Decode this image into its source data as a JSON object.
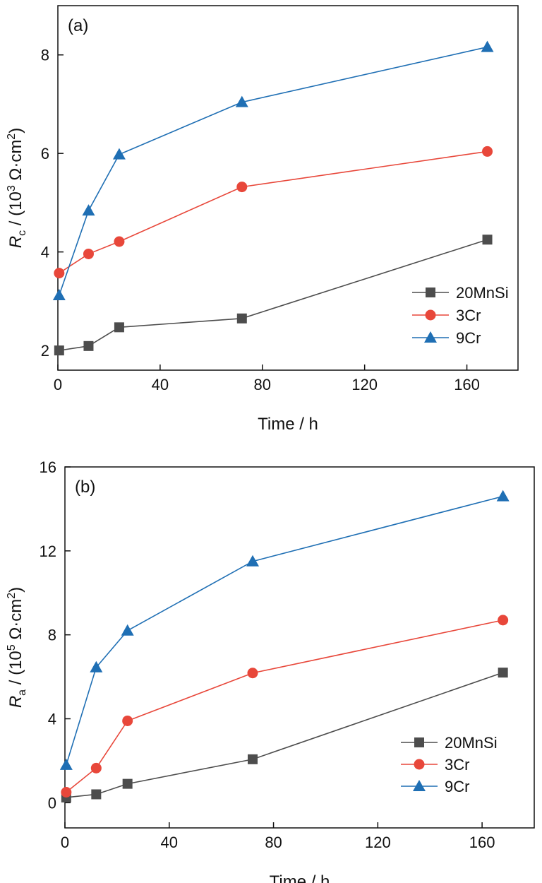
{
  "chart_data": [
    {
      "type": "line",
      "panel_label": "(a)",
      "xlabel": "Time / h",
      "ylabel": {
        "symbol": "R",
        "sub": "c",
        "pre": " / (10",
        "sup": "3",
        "mid": " Ω·cm",
        "sup2": "2",
        "post": ")"
      },
      "xlim": [
        0,
        180
      ],
      "ylim": [
        1.6,
        9.0
      ],
      "xticks": [
        0,
        40,
        80,
        120,
        160
      ],
      "xtick_labels": [
        "0",
        "40",
        "80",
        "120",
        "160"
      ],
      "yticks": [
        2,
        4,
        6,
        8
      ],
      "ytick_labels": [
        "2",
        "4",
        "6",
        "8"
      ],
      "x": [
        0.5,
        12,
        24,
        72,
        168
      ],
      "legend_position": "bottom-right",
      "series": [
        {
          "name": "20MnSi",
          "color": "#4d4d4d",
          "marker": "square",
          "values": [
            2.0,
            2.09,
            2.47,
            2.65,
            4.25
          ]
        },
        {
          "name": "3Cr",
          "color": "#e8473a",
          "marker": "circle",
          "values": [
            3.57,
            3.96,
            4.21,
            5.32,
            6.04
          ]
        },
        {
          "name": "9Cr",
          "color": "#1f6fb4",
          "marker": "triangle",
          "values": [
            3.12,
            4.84,
            5.98,
            7.04,
            8.16
          ]
        }
      ]
    },
    {
      "type": "line",
      "panel_label": "(b)",
      "xlabel": "Time / h",
      "ylabel": {
        "symbol": "R",
        "sub": "a",
        "pre": " / (10",
        "sup": "5",
        "mid": " Ω·cm",
        "sup2": "2",
        "post": ")"
      },
      "xlim": [
        0,
        180
      ],
      "ylim": [
        -1.2,
        16.0
      ],
      "xticks": [
        0,
        40,
        80,
        120,
        160
      ],
      "xtick_labels": [
        "0",
        "40",
        "80",
        "120",
        "160"
      ],
      "yticks": [
        0,
        4,
        8,
        12,
        16
      ],
      "ytick_labels": [
        "0",
        "4",
        "8",
        "12",
        "16"
      ],
      "x": [
        0.5,
        12,
        24,
        72,
        168
      ],
      "legend_position": "bottom-right",
      "series": [
        {
          "name": "20MnSi",
          "color": "#4d4d4d",
          "marker": "square",
          "values": [
            0.25,
            0.4,
            0.9,
            2.07,
            6.2
          ]
        },
        {
          "name": "3Cr",
          "color": "#e8473a",
          "marker": "circle",
          "values": [
            0.5,
            1.65,
            3.9,
            6.18,
            8.7
          ]
        },
        {
          "name": "9Cr",
          "color": "#1f6fb4",
          "marker": "triangle",
          "values": [
            1.8,
            6.45,
            8.2,
            11.5,
            14.6
          ]
        }
      ]
    }
  ]
}
